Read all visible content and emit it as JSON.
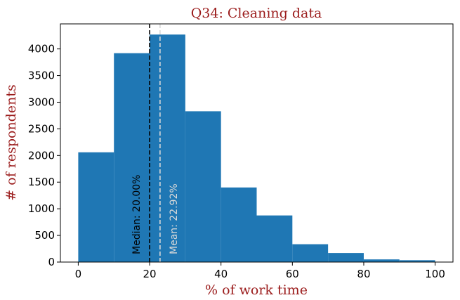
{
  "chart_data": {
    "type": "bar",
    "title": "Q34: Cleaning data",
    "xlabel": "% of work time",
    "ylabel": "# of respondents",
    "bins": [
      {
        "start": 0,
        "end": 10,
        "value": 2060
      },
      {
        "start": 10,
        "end": 20,
        "value": 3920
      },
      {
        "start": 20,
        "end": 30,
        "value": 4270
      },
      {
        "start": 30,
        "end": 40,
        "value": 2830
      },
      {
        "start": 40,
        "end": 50,
        "value": 1400
      },
      {
        "start": 50,
        "end": 60,
        "value": 875
      },
      {
        "start": 60,
        "end": 70,
        "value": 335
      },
      {
        "start": 70,
        "end": 80,
        "value": 170
      },
      {
        "start": 80,
        "end": 90,
        "value": 50
      },
      {
        "start": 90,
        "end": 100,
        "value": 35
      }
    ],
    "xlim": [
      -5,
      105
    ],
    "ylim": [
      0,
      4470
    ],
    "xticks": [
      0,
      20,
      40,
      60,
      80,
      100
    ],
    "yticks": [
      0,
      500,
      1000,
      1500,
      2000,
      2500,
      3000,
      3500,
      4000
    ],
    "bar_color": "#1f77b4",
    "grid": false,
    "annotations": [
      {
        "label": "Median: 20.00%",
        "x": 20,
        "line_color": "#000000",
        "text_color": "#000000"
      },
      {
        "label": "Mean: 22.92%",
        "x": 22.92,
        "line_color": "#d9d9d9",
        "text_color": "#d9d9d9"
      }
    ]
  }
}
